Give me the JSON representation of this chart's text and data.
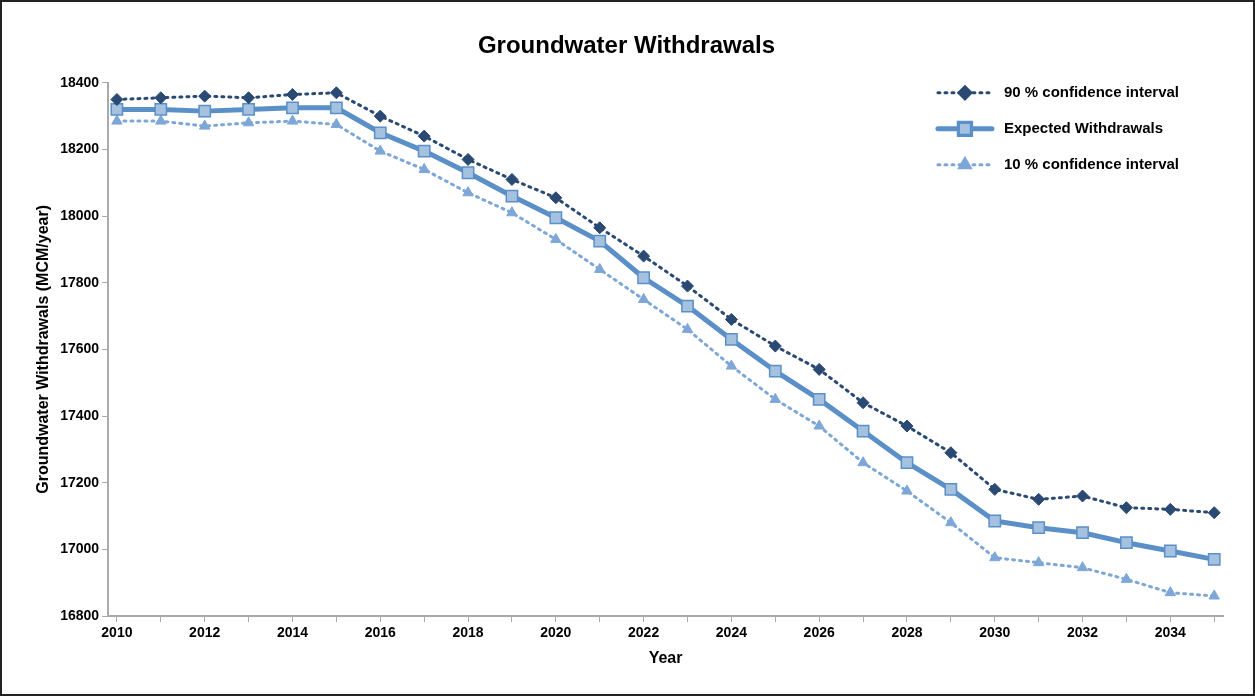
{
  "chart_data": {
    "type": "line",
    "title": "Groundwater Withdrawals",
    "xlabel": "Year",
    "ylabel": "Groundwater Withdrawals (MCM/year)",
    "x": [
      2010,
      2011,
      2012,
      2013,
      2014,
      2015,
      2016,
      2017,
      2018,
      2019,
      2020,
      2021,
      2022,
      2023,
      2024,
      2025,
      2026,
      2027,
      2028,
      2029,
      2030,
      2031,
      2032,
      2033,
      2034,
      2035
    ],
    "xlim": [
      2009.8,
      2035.2
    ],
    "xticks": [
      2010,
      {
        "value": 2011,
        "label": null
      },
      2012,
      {
        "value": 2013,
        "label": null
      },
      2014,
      {
        "value": 2015,
        "label": null
      },
      2016,
      {
        "value": 2017,
        "label": null
      },
      2018,
      {
        "value": 2019,
        "label": null
      },
      2020,
      {
        "value": 2021,
        "label": null
      },
      2022,
      {
        "value": 2023,
        "label": null
      },
      2024,
      {
        "value": 2025,
        "label": null
      },
      2026,
      {
        "value": 2027,
        "label": null
      },
      2028,
      {
        "value": 2029,
        "label": null
      },
      2030,
      {
        "value": 2031,
        "label": null
      },
      2032,
      {
        "value": 2033,
        "label": null
      },
      2034,
      {
        "value": 2035,
        "label": null
      }
    ],
    "ylim": [
      16800,
      18400
    ],
    "yticks": [
      16800,
      17000,
      17200,
      17400,
      17600,
      17800,
      18000,
      18200,
      18400
    ],
    "grid": false,
    "legend": "top right",
    "series": [
      {
        "name": "90 % confidence interval",
        "color": "#2b4a73",
        "marker": "diamond",
        "line_style": "dotted",
        "values": [
          18350,
          18355,
          18360,
          18355,
          18365,
          18370,
          18300,
          18240,
          18170,
          18110,
          18055,
          17965,
          17880,
          17790,
          17690,
          17610,
          17540,
          17440,
          17370,
          17290,
          17180,
          17150,
          17160,
          17125,
          17120,
          17110
        ]
      },
      {
        "name": "Expected Withdrawals",
        "color": "#5b8fc7",
        "marker": "square",
        "line_style": "solid",
        "values": [
          18320,
          18320,
          18315,
          18320,
          18325,
          18325,
          18250,
          18195,
          18130,
          18060,
          17995,
          17925,
          17815,
          17730,
          17630,
          17535,
          17450,
          17355,
          17260,
          17180,
          17085,
          17065,
          17050,
          17020,
          16995,
          16970
        ]
      },
      {
        "name": "10 % confidence interval",
        "color": "#7ea7d8",
        "marker": "triangle",
        "line_style": "dotted",
        "values": [
          18285,
          18285,
          18270,
          18280,
          18285,
          18275,
          18195,
          18140,
          18070,
          18010,
          17930,
          17840,
          17750,
          17660,
          17550,
          17450,
          17370,
          17260,
          17175,
          17080,
          16975,
          16960,
          16945,
          16910,
          16870,
          16860
        ]
      }
    ]
  }
}
